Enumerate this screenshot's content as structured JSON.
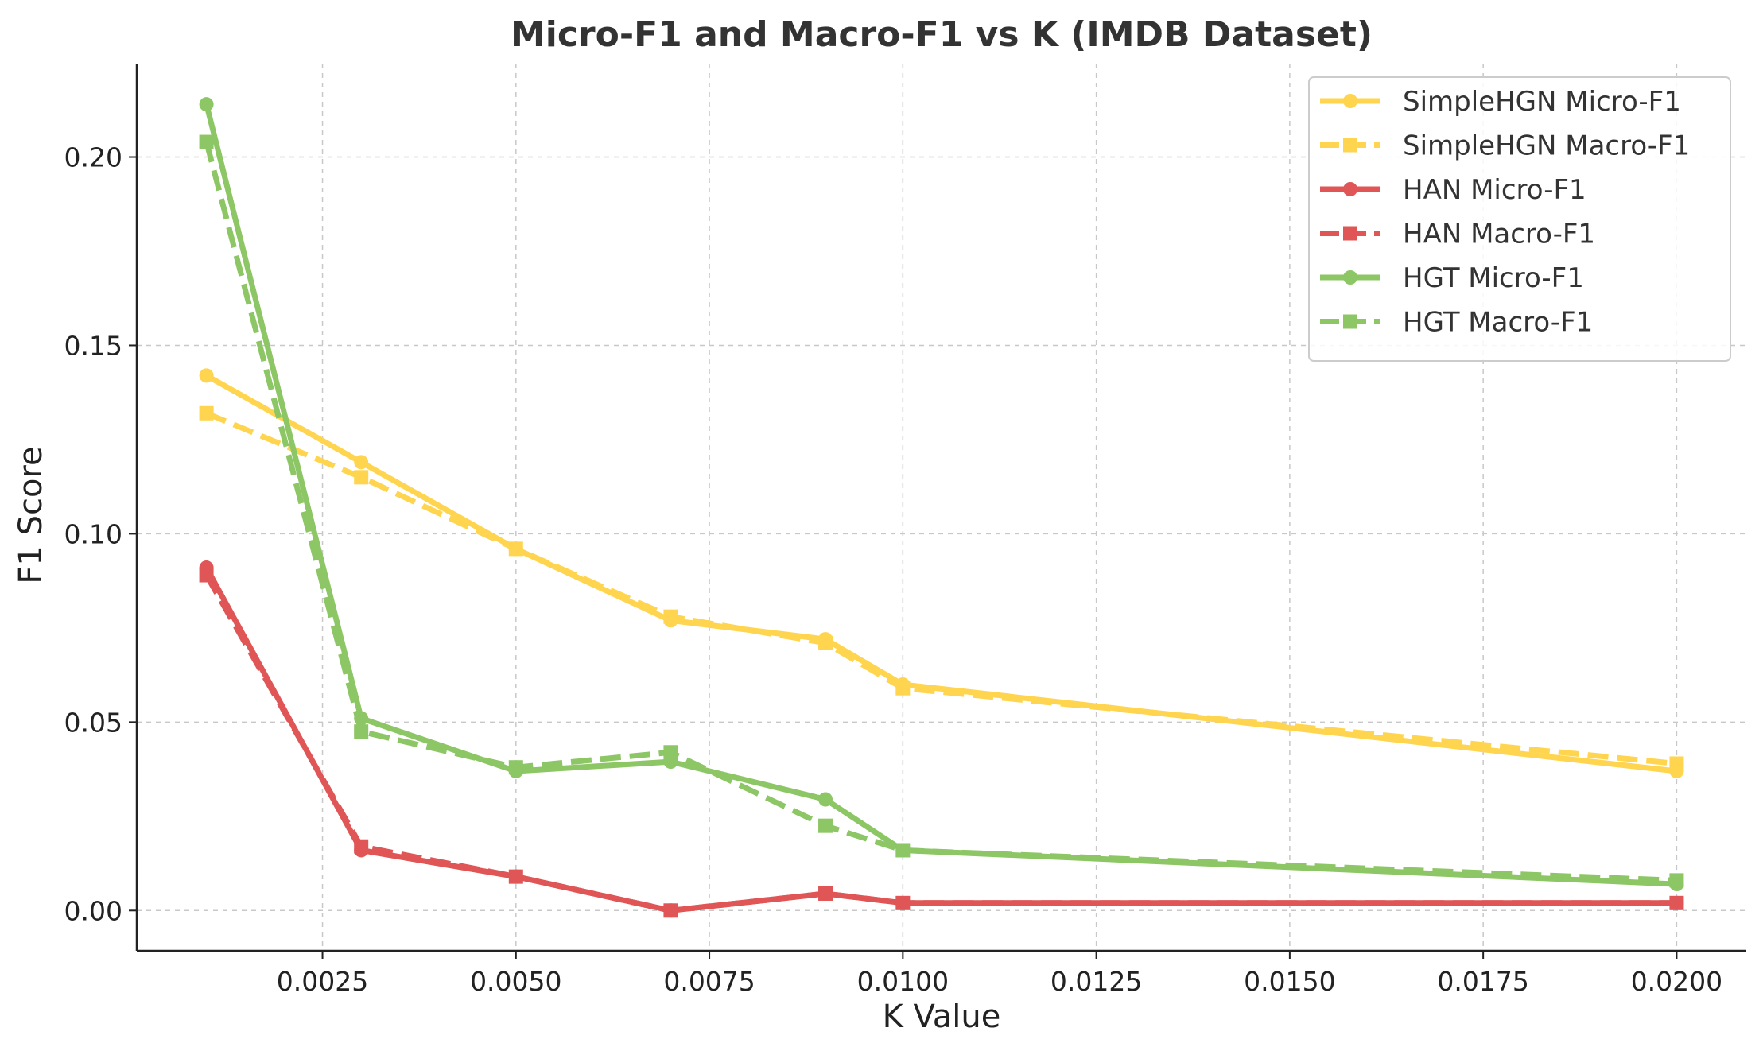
{
  "chart_data": {
    "type": "line",
    "title": "Micro-F1 and Macro-F1 vs K (IMDB Dataset)",
    "xlabel": "K Value",
    "ylabel": "F1 Score",
    "x": [
      0.001,
      0.003,
      0.005,
      0.007,
      0.009,
      0.01,
      0.02
    ],
    "xlim": [
      0.0001,
      0.0209
    ],
    "ylim": [
      -0.0107,
      0.2248
    ],
    "xticks": [
      0.0025,
      0.005,
      0.0075,
      0.01,
      0.0125,
      0.015,
      0.0175,
      0.02
    ],
    "xtick_labels": [
      "0.0025",
      "0.0050",
      "0.0075",
      "0.0100",
      "0.0125",
      "0.0150",
      "0.0175",
      "0.0200"
    ],
    "yticks": [
      0.0,
      0.05,
      0.1,
      0.15,
      0.2
    ],
    "ytick_labels": [
      "0.00",
      "0.05",
      "0.10",
      "0.15",
      "0.20"
    ],
    "grid": true,
    "legend_position": "top-right",
    "series": [
      {
        "name": "SimpleHGN Micro-F1",
        "color": "#FFD54F",
        "linestyle": "solid",
        "marker": "circle",
        "values": [
          0.142,
          0.119,
          0.096,
          0.077,
          0.072,
          0.06,
          0.037
        ]
      },
      {
        "name": "SimpleHGN Macro-F1",
        "color": "#FFD54F",
        "linestyle": "dashed",
        "marker": "square",
        "values": [
          0.132,
          0.115,
          0.096,
          0.078,
          0.071,
          0.059,
          0.039
        ]
      },
      {
        "name": "HAN Micro-F1",
        "color": "#E05555",
        "linestyle": "solid",
        "marker": "circle",
        "values": [
          0.091,
          0.016,
          0.009,
          0.0,
          0.0045,
          0.002,
          0.002
        ]
      },
      {
        "name": "HAN Macro-F1",
        "color": "#E05555",
        "linestyle": "dashed",
        "marker": "square",
        "values": [
          0.089,
          0.017,
          0.009,
          0.0,
          0.0045,
          0.002,
          0.002
        ]
      },
      {
        "name": "HGT Micro-F1",
        "color": "#8CC665",
        "linestyle": "solid",
        "marker": "circle",
        "values": [
          0.214,
          0.051,
          0.037,
          0.0395,
          0.0295,
          0.016,
          0.007
        ]
      },
      {
        "name": "HGT Macro-F1",
        "color": "#8CC665",
        "linestyle": "dashed",
        "marker": "square",
        "values": [
          0.204,
          0.0475,
          0.038,
          0.042,
          0.0225,
          0.016,
          0.008
        ]
      }
    ]
  }
}
